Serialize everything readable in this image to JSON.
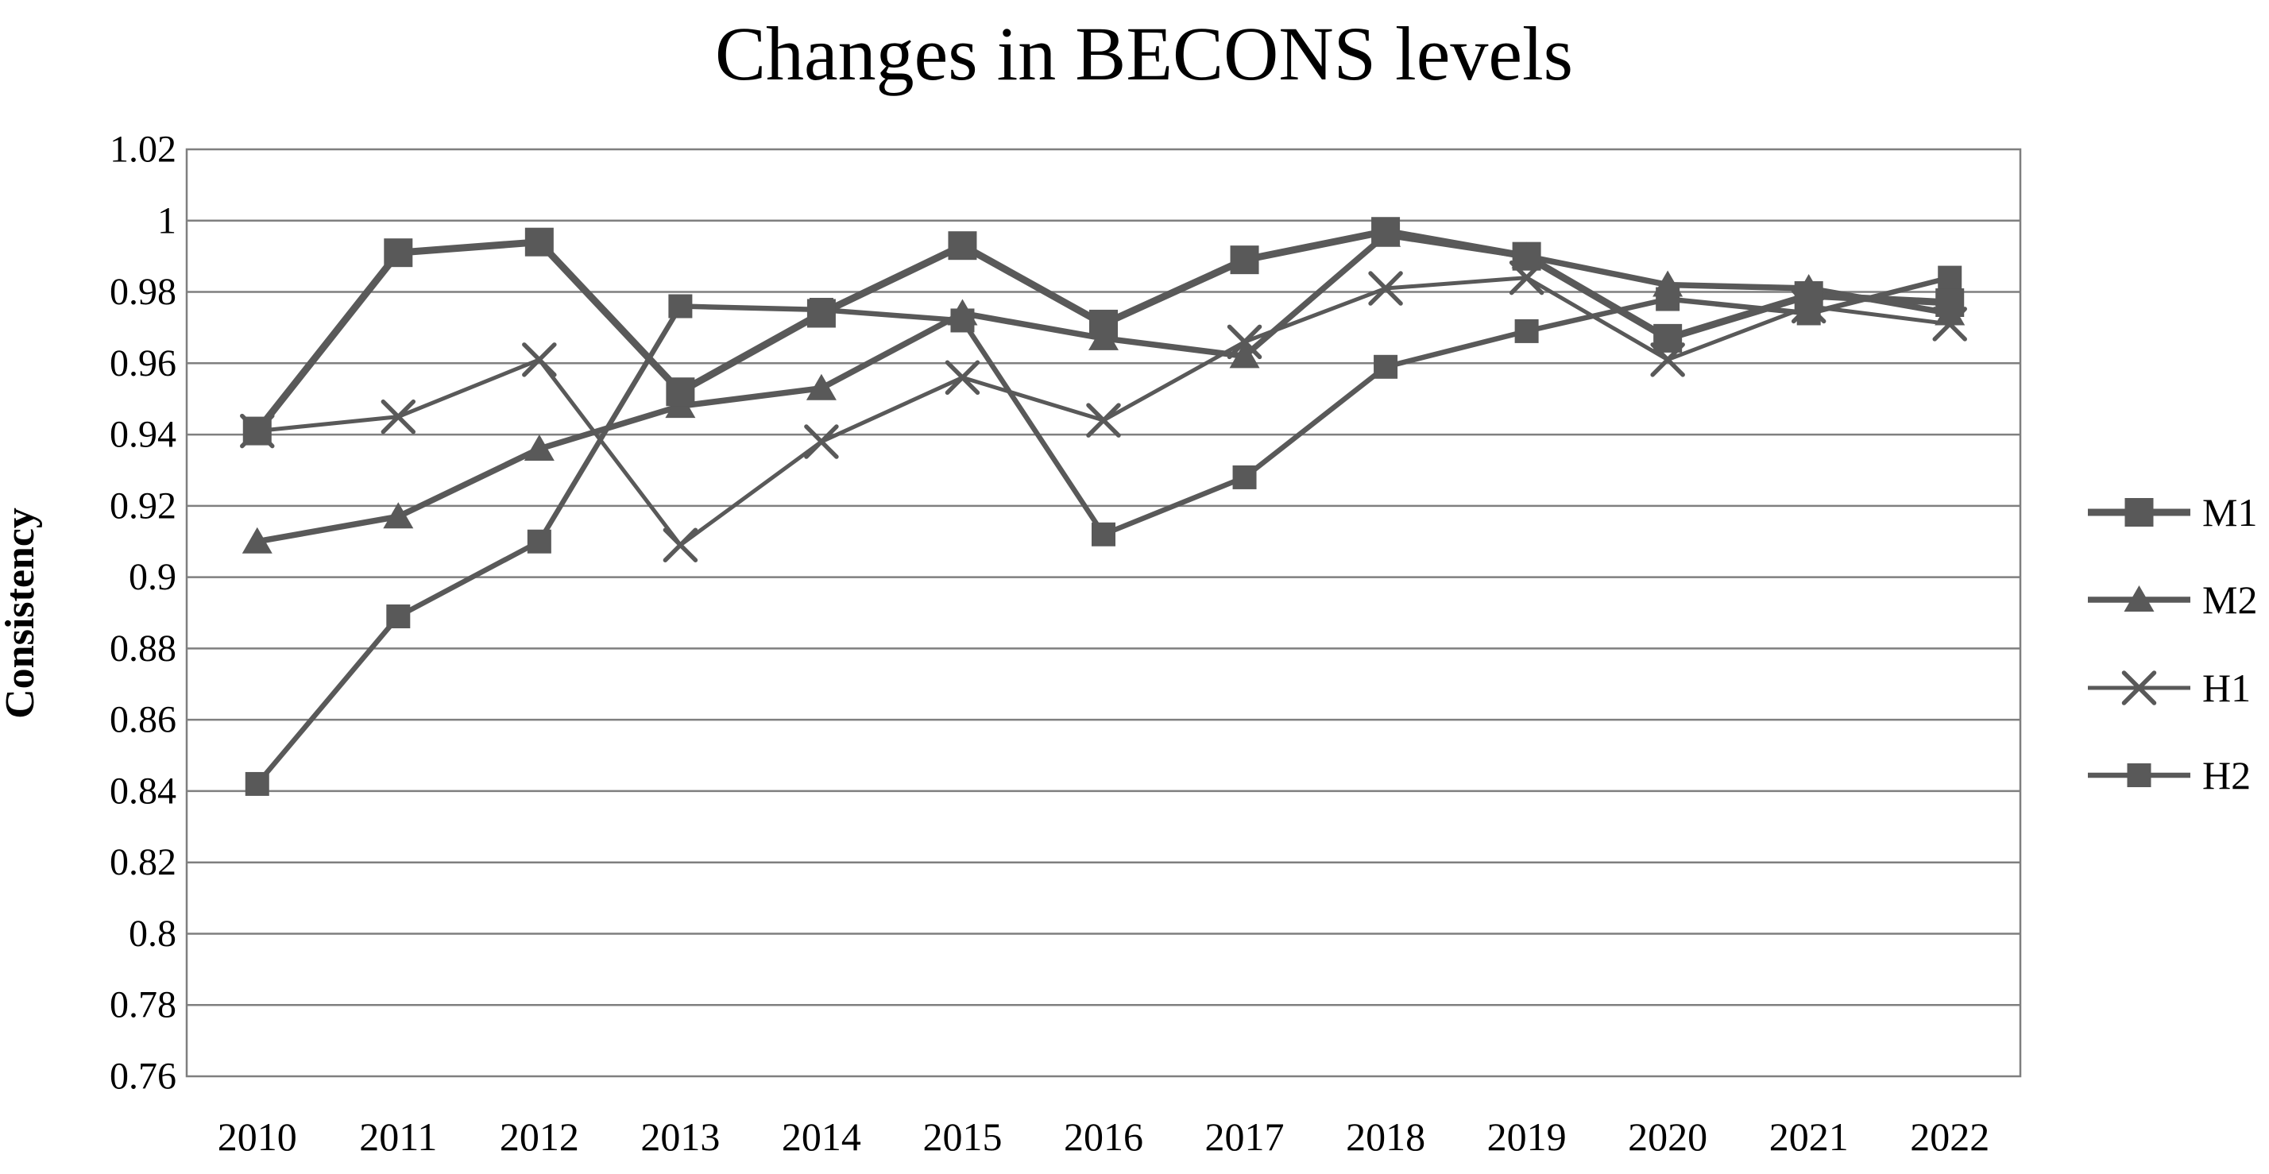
{
  "title": "Changes in BECONS levels",
  "y_axis": {
    "label": "Consistency",
    "tick_labels": [
      "1.02",
      "1",
      "0.98",
      "0.96",
      "0.94",
      "0.92",
      "0.9",
      "0.88",
      "0.86",
      "0.84",
      "0.82",
      "0.8",
      "0.78",
      "0.76"
    ],
    "min": 0.76,
    "max": 1.02,
    "step": 0.02
  },
  "x_axis": {
    "categories": [
      "2010",
      "2011",
      "2012",
      "2013",
      "2014",
      "2015",
      "2016",
      "2017",
      "2018",
      "2019",
      "2020",
      "2021",
      "2022"
    ]
  },
  "legend": {
    "position": "right",
    "items": [
      {
        "label": "M1",
        "marker": "square-large"
      },
      {
        "label": "M2",
        "marker": "triangle"
      },
      {
        "label": "H1",
        "marker": "x"
      },
      {
        "label": "H2",
        "marker": "square"
      }
    ]
  },
  "colors": {
    "series": "#595959",
    "gridline": "#7f7f7f",
    "text": "#000000",
    "background": "#ffffff"
  },
  "chart_data": {
    "type": "line",
    "title": "Changes in BECONS levels",
    "xlabel": "",
    "ylabel": "Consistency",
    "ylim": [
      0.76,
      1.02
    ],
    "ytick_step": 0.02,
    "grid": true,
    "legend_position": "right",
    "categories": [
      2010,
      2011,
      2012,
      2013,
      2014,
      2015,
      2016,
      2017,
      2018,
      2019,
      2020,
      2021,
      2022
    ],
    "series": [
      {
        "name": "M1",
        "marker": "square-large",
        "line_width": 9,
        "values": [
          0.941,
          0.991,
          0.994,
          0.952,
          0.974,
          0.993,
          0.971,
          0.989,
          0.997,
          0.99,
          0.967,
          0.979,
          0.977
        ]
      },
      {
        "name": "M2",
        "marker": "triangle",
        "line_width": 7.5,
        "values": [
          0.91,
          0.917,
          0.936,
          0.948,
          0.953,
          0.974,
          0.967,
          0.962,
          0.996,
          0.99,
          0.982,
          0.981,
          0.974
        ]
      },
      {
        "name": "H1",
        "marker": "x",
        "line_width": 5,
        "values": [
          0.941,
          0.945,
          0.961,
          0.909,
          0.938,
          0.956,
          0.944,
          0.966,
          0.981,
          0.984,
          0.961,
          0.976,
          0.971
        ]
      },
      {
        "name": "H2",
        "marker": "square",
        "line_width": 6.5,
        "values": [
          0.842,
          0.889,
          0.91,
          0.976,
          0.975,
          0.972,
          0.912,
          0.928,
          0.959,
          0.969,
          0.978,
          0.974,
          0.984
        ]
      }
    ]
  }
}
